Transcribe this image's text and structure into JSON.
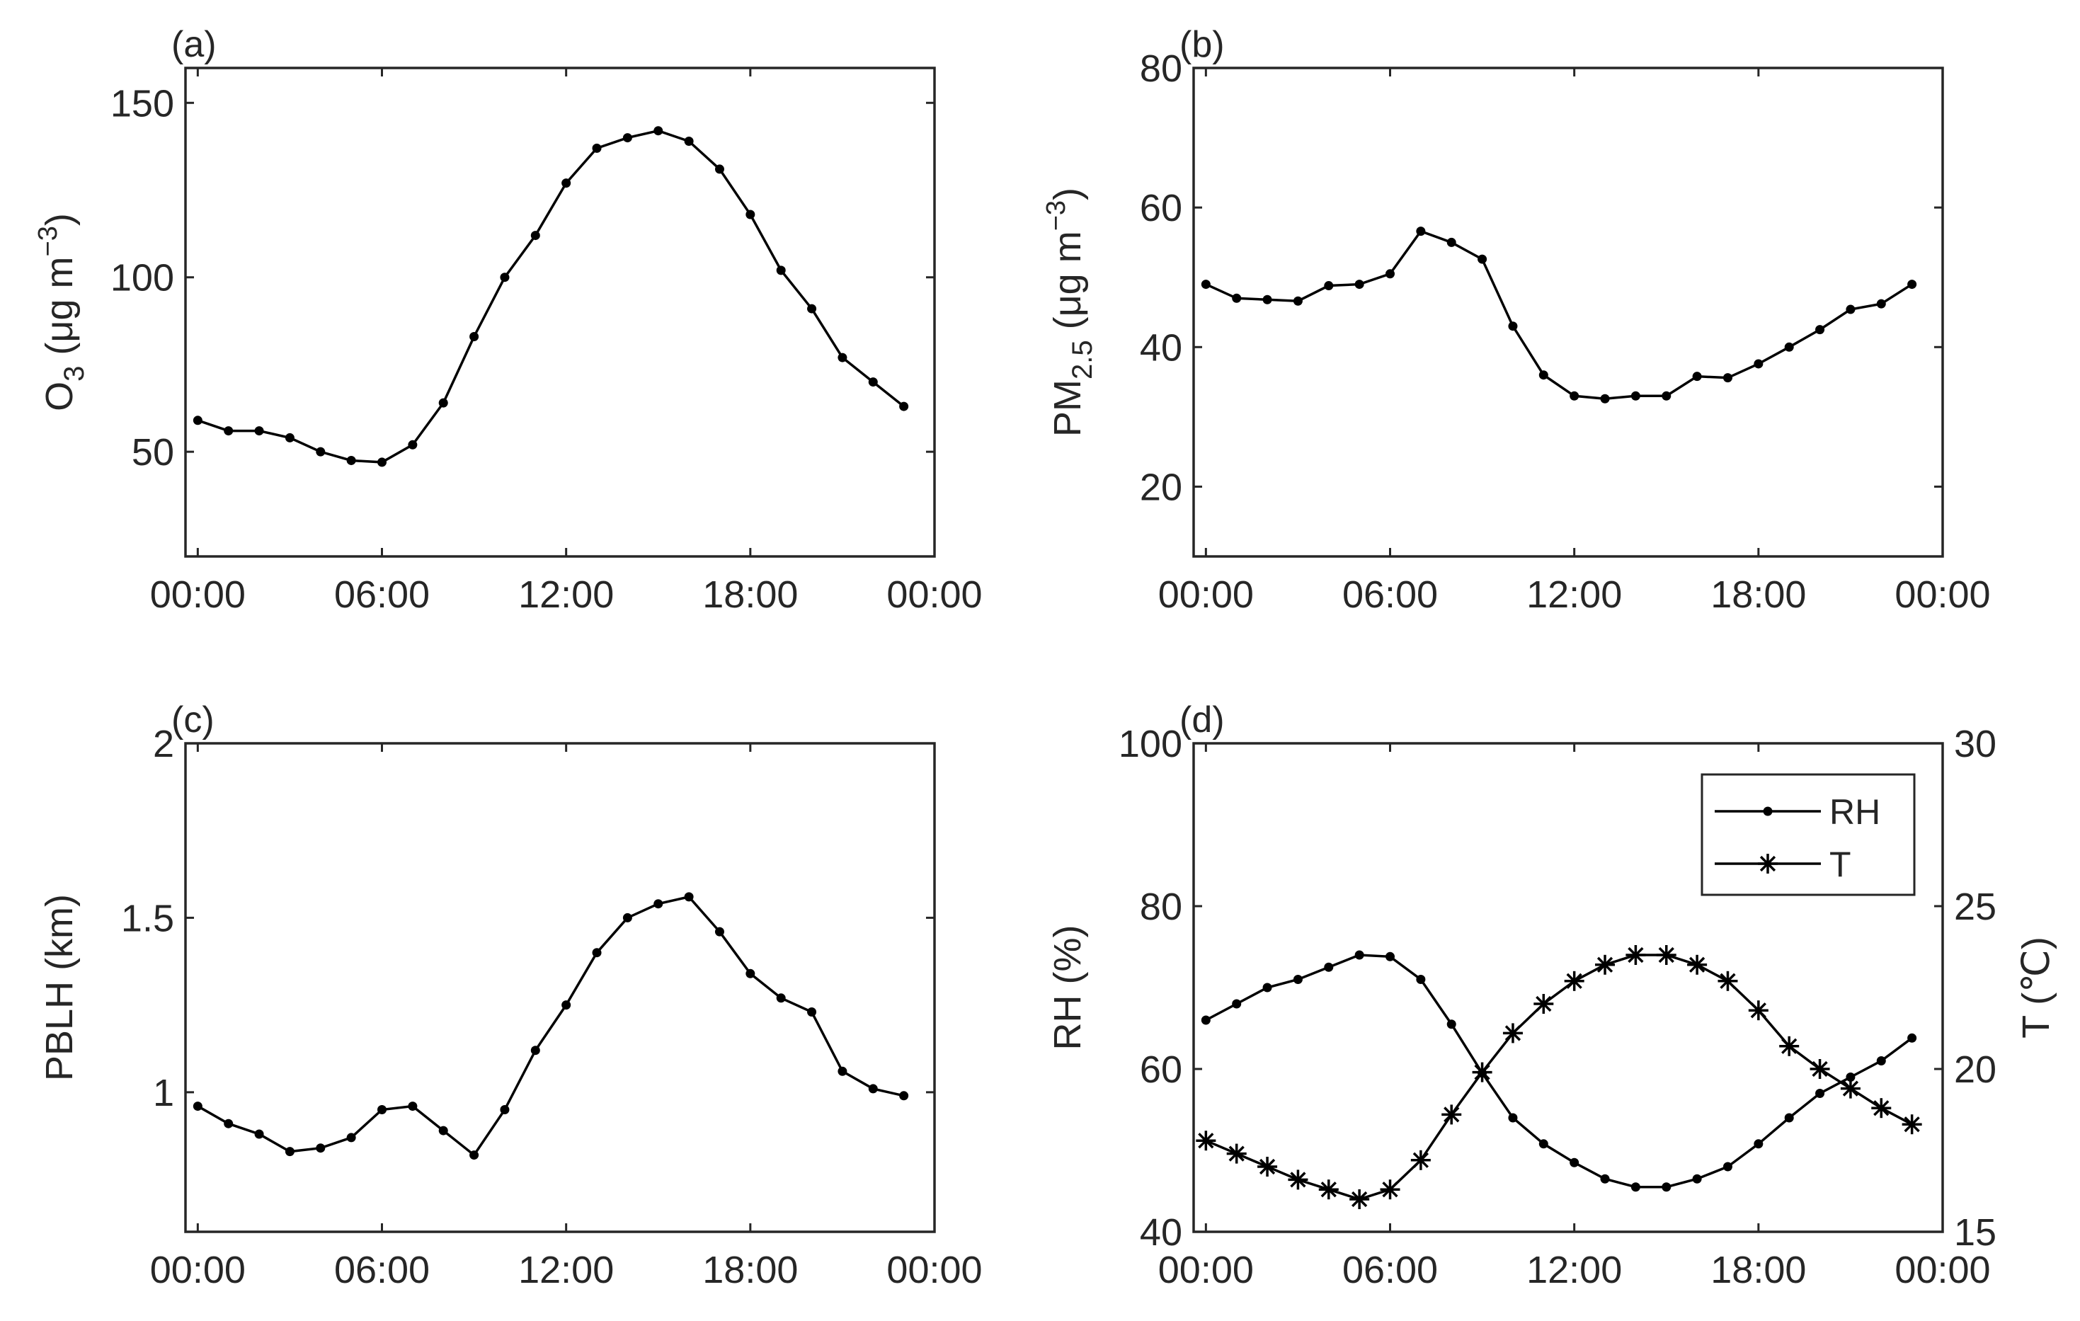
{
  "chart_data": [
    {
      "id": "a",
      "type": "line",
      "panel_label": "(a)",
      "ylabel": {
        "main": "O",
        "sub": "3",
        "unit": " (μg m",
        "sup": "−3",
        "close": ")"
      },
      "ylim": [
        20,
        160
      ],
      "yticks": [
        50,
        100,
        150
      ],
      "xticks": [
        "00:00",
        "06:00",
        "12:00",
        "18:00",
        "00:00"
      ],
      "x_hours": [
        0,
        1,
        2,
        3,
        4,
        5,
        6,
        7,
        8,
        9,
        10,
        11,
        12,
        13,
        14,
        15,
        16,
        17,
        18,
        19,
        20,
        21,
        22,
        23
      ],
      "series": [
        {
          "name": "O3",
          "marker": "dot",
          "values": [
            59,
            56,
            56,
            54,
            50,
            47.5,
            47,
            52,
            64,
            83,
            100,
            112,
            127,
            137,
            140,
            142,
            139,
            131,
            118,
            102,
            91,
            77,
            70,
            63
          ]
        }
      ]
    },
    {
      "id": "b",
      "type": "line",
      "panel_label": "(b)",
      "ylabel": {
        "main": "PM",
        "sub": "2.5",
        "unit": " (μg m",
        "sup": "−3",
        "close": ")"
      },
      "ylim": [
        10,
        80
      ],
      "yticks": [
        20,
        40,
        60,
        80
      ],
      "xticks": [
        "00:00",
        "06:00",
        "12:00",
        "18:00",
        "00:00"
      ],
      "x_hours": [
        0,
        1,
        2,
        3,
        4,
        5,
        6,
        7,
        8,
        9,
        10,
        11,
        12,
        13,
        14,
        15,
        16,
        17,
        18,
        19,
        20,
        21,
        22,
        23
      ],
      "series": [
        {
          "name": "PM2.5",
          "marker": "dot",
          "values": [
            49,
            47,
            46.8,
            46.6,
            48.8,
            49,
            50.5,
            56.6,
            55,
            52.6,
            43,
            36,
            33,
            32.6,
            33,
            33,
            35.8,
            35.6,
            37.6,
            40,
            42.5,
            45.4,
            46.2,
            49
          ]
        }
      ]
    },
    {
      "id": "c",
      "type": "line",
      "panel_label": "(c)",
      "ylabel": {
        "main": "PBLH (km)"
      },
      "ylim": [
        0.6,
        2
      ],
      "yticks": [
        1,
        1.5,
        2
      ],
      "xticks": [
        "00:00",
        "06:00",
        "12:00",
        "18:00",
        "00:00"
      ],
      "x_hours": [
        0,
        1,
        2,
        3,
        4,
        5,
        6,
        7,
        8,
        9,
        10,
        11,
        12,
        13,
        14,
        15,
        16,
        17,
        18,
        19,
        20,
        21,
        22,
        23
      ],
      "series": [
        {
          "name": "PBLH",
          "marker": "dot",
          "values": [
            0.96,
            0.91,
            0.88,
            0.83,
            0.84,
            0.87,
            0.95,
            0.96,
            0.89,
            0.82,
            0.95,
            1.12,
            1.25,
            1.4,
            1.5,
            1.54,
            1.56,
            1.46,
            1.34,
            1.27,
            1.23,
            1.06,
            1.01,
            0.99
          ]
        }
      ]
    },
    {
      "id": "d",
      "type": "line",
      "panel_label": "(d)",
      "ylabel": {
        "main": "RH (%)"
      },
      "ylabel_right": {
        "main": "T (℃)"
      },
      "ylim": [
        40,
        100
      ],
      "yticks": [
        40,
        60,
        80,
        100
      ],
      "ylim_right": [
        15,
        30
      ],
      "yticks_right": [
        15,
        20,
        25,
        30
      ],
      "xticks": [
        "00:00",
        "06:00",
        "12:00",
        "18:00",
        "00:00"
      ],
      "x_hours": [
        0,
        1,
        2,
        3,
        4,
        5,
        6,
        7,
        8,
        9,
        10,
        11,
        12,
        13,
        14,
        15,
        16,
        17,
        18,
        19,
        20,
        21,
        22,
        23
      ],
      "legend": {
        "location": "top-right",
        "entries": [
          "RH",
          "T"
        ]
      },
      "series": [
        {
          "name": "RH",
          "marker": "dot",
          "axis": "left",
          "values": [
            66,
            68,
            70,
            71,
            72.5,
            74,
            73.8,
            71,
            65.5,
            59.5,
            54,
            50.8,
            48.5,
            46.5,
            45.5,
            45.5,
            46.5,
            48,
            50.8,
            54,
            57,
            59,
            61,
            63.8
          ]
        },
        {
          "name": "T",
          "marker": "star",
          "axis": "right",
          "values": [
            17.8,
            17.4,
            17.0,
            16.6,
            16.3,
            16.0,
            16.3,
            17.2,
            18.6,
            19.9,
            21.1,
            22.0,
            22.7,
            23.2,
            23.5,
            23.5,
            23.2,
            22.7,
            21.8,
            20.7,
            20.0,
            19.4,
            18.8,
            18.3
          ]
        }
      ]
    }
  ]
}
